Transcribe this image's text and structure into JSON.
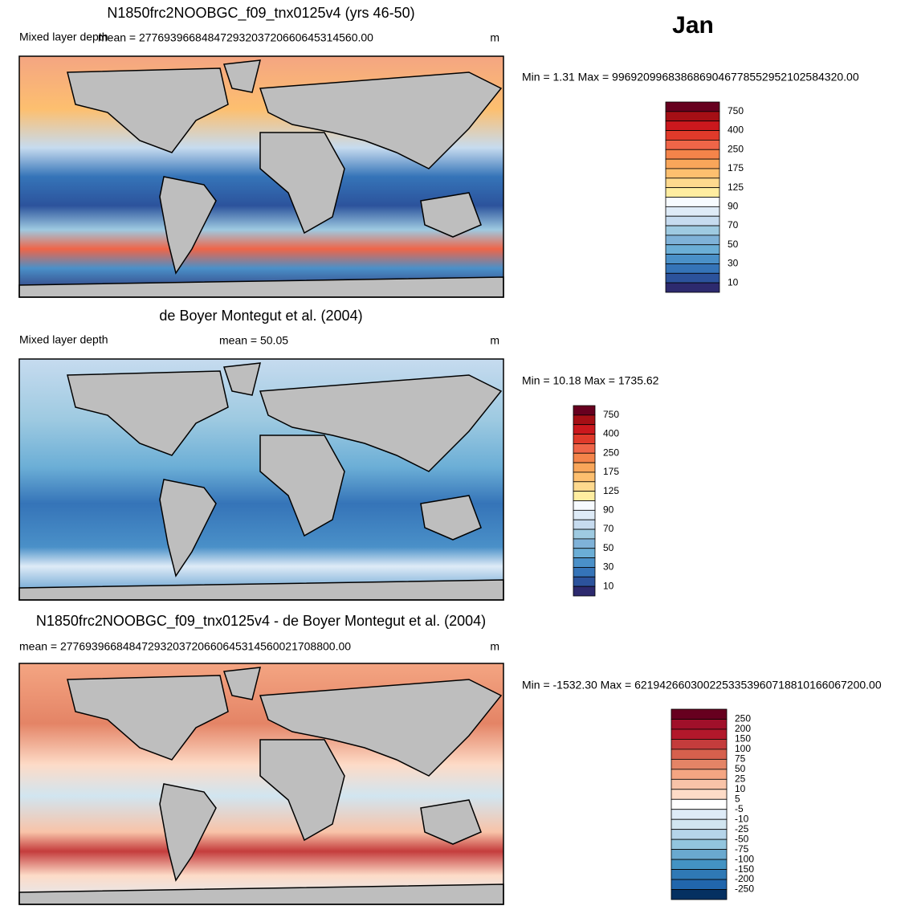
{
  "title": "Jan",
  "panels": [
    {
      "title": "N1850frc2NOOBGC_f09_tnx0125v4 (yrs 46-50)",
      "left_label": "Mixed layer depth",
      "mean": "mean = 27769396684847293203720660645314560.00",
      "units": "m",
      "minmax": "Min =   1.31 Max = 99692099683868690467785529521025843​20.00",
      "colorbar": {
        "labels": [
          "750",
          "400",
          "250",
          "175",
          "125",
          "90",
          "70",
          "50",
          "30",
          "10"
        ],
        "colors": [
          "#67001f",
          "#a50f15",
          "#cb181d",
          "#e03a2a",
          "#ef6548",
          "#f4844a",
          "#f9a65a",
          "#fdbf6f",
          "#fed98e",
          "#ffeda0",
          "#f7fbff",
          "#deebf7",
          "#c6dbef",
          "#9ecae1",
          "#7fb2d8",
          "#6baed6",
          "#4a90c8",
          "#3574b8",
          "#2c539c",
          "#2d2a6e"
        ]
      }
    },
    {
      "title": "de Boyer Montegut et al. (2004)",
      "left_label": "Mixed layer depth",
      "mean": "mean =  50.05",
      "units": "m",
      "minmax": "Min =  10.18 Max = 1735.62",
      "colorbar": {
        "labels": [
          "750",
          "400",
          "250",
          "175",
          "125",
          "90",
          "70",
          "50",
          "30",
          "10"
        ],
        "colors": [
          "#67001f",
          "#a50f15",
          "#cb181d",
          "#e03a2a",
          "#ef6548",
          "#f4844a",
          "#f9a65a",
          "#fdbf6f",
          "#fed98e",
          "#ffeda0",
          "#f7fbff",
          "#deebf7",
          "#c6dbef",
          "#9ecae1",
          "#7fb2d8",
          "#6baed6",
          "#4a90c8",
          "#3574b8",
          "#2c539c",
          "#2d2a6e"
        ]
      }
    },
    {
      "title": "N1850frc2NOOBGC_f09_tnx0125v4 - de Boyer Montegut et al. (2004)",
      "left_label": "",
      "mean": "mean = 27769396684847293203720660645314560021708800.00",
      "units": "m",
      "minmax": "Min = -1532.30 Max = 62194266030022533539607188101660672​00.00",
      "colorbar": {
        "labels": [
          "250",
          "200",
          "150",
          "100",
          "75",
          "50",
          "25",
          "10",
          "5",
          "-5",
          "-10",
          "-25",
          "-50",
          "-75",
          "-100",
          "-150",
          "-200",
          "-250"
        ],
        "colors": [
          "#67001f",
          "#a0102a",
          "#b2182b",
          "#c43c3c",
          "#d6604d",
          "#e48466",
          "#f4a582",
          "#f8c3a8",
          "#fddbc7",
          "#ffffff",
          "#deebf7",
          "#d1e5f0",
          "#b5d4e9",
          "#92c5de",
          "#6aa9cf",
          "#4393c3",
          "#2f79b5",
          "#2166ac",
          "#053061"
        ]
      }
    }
  ]
}
